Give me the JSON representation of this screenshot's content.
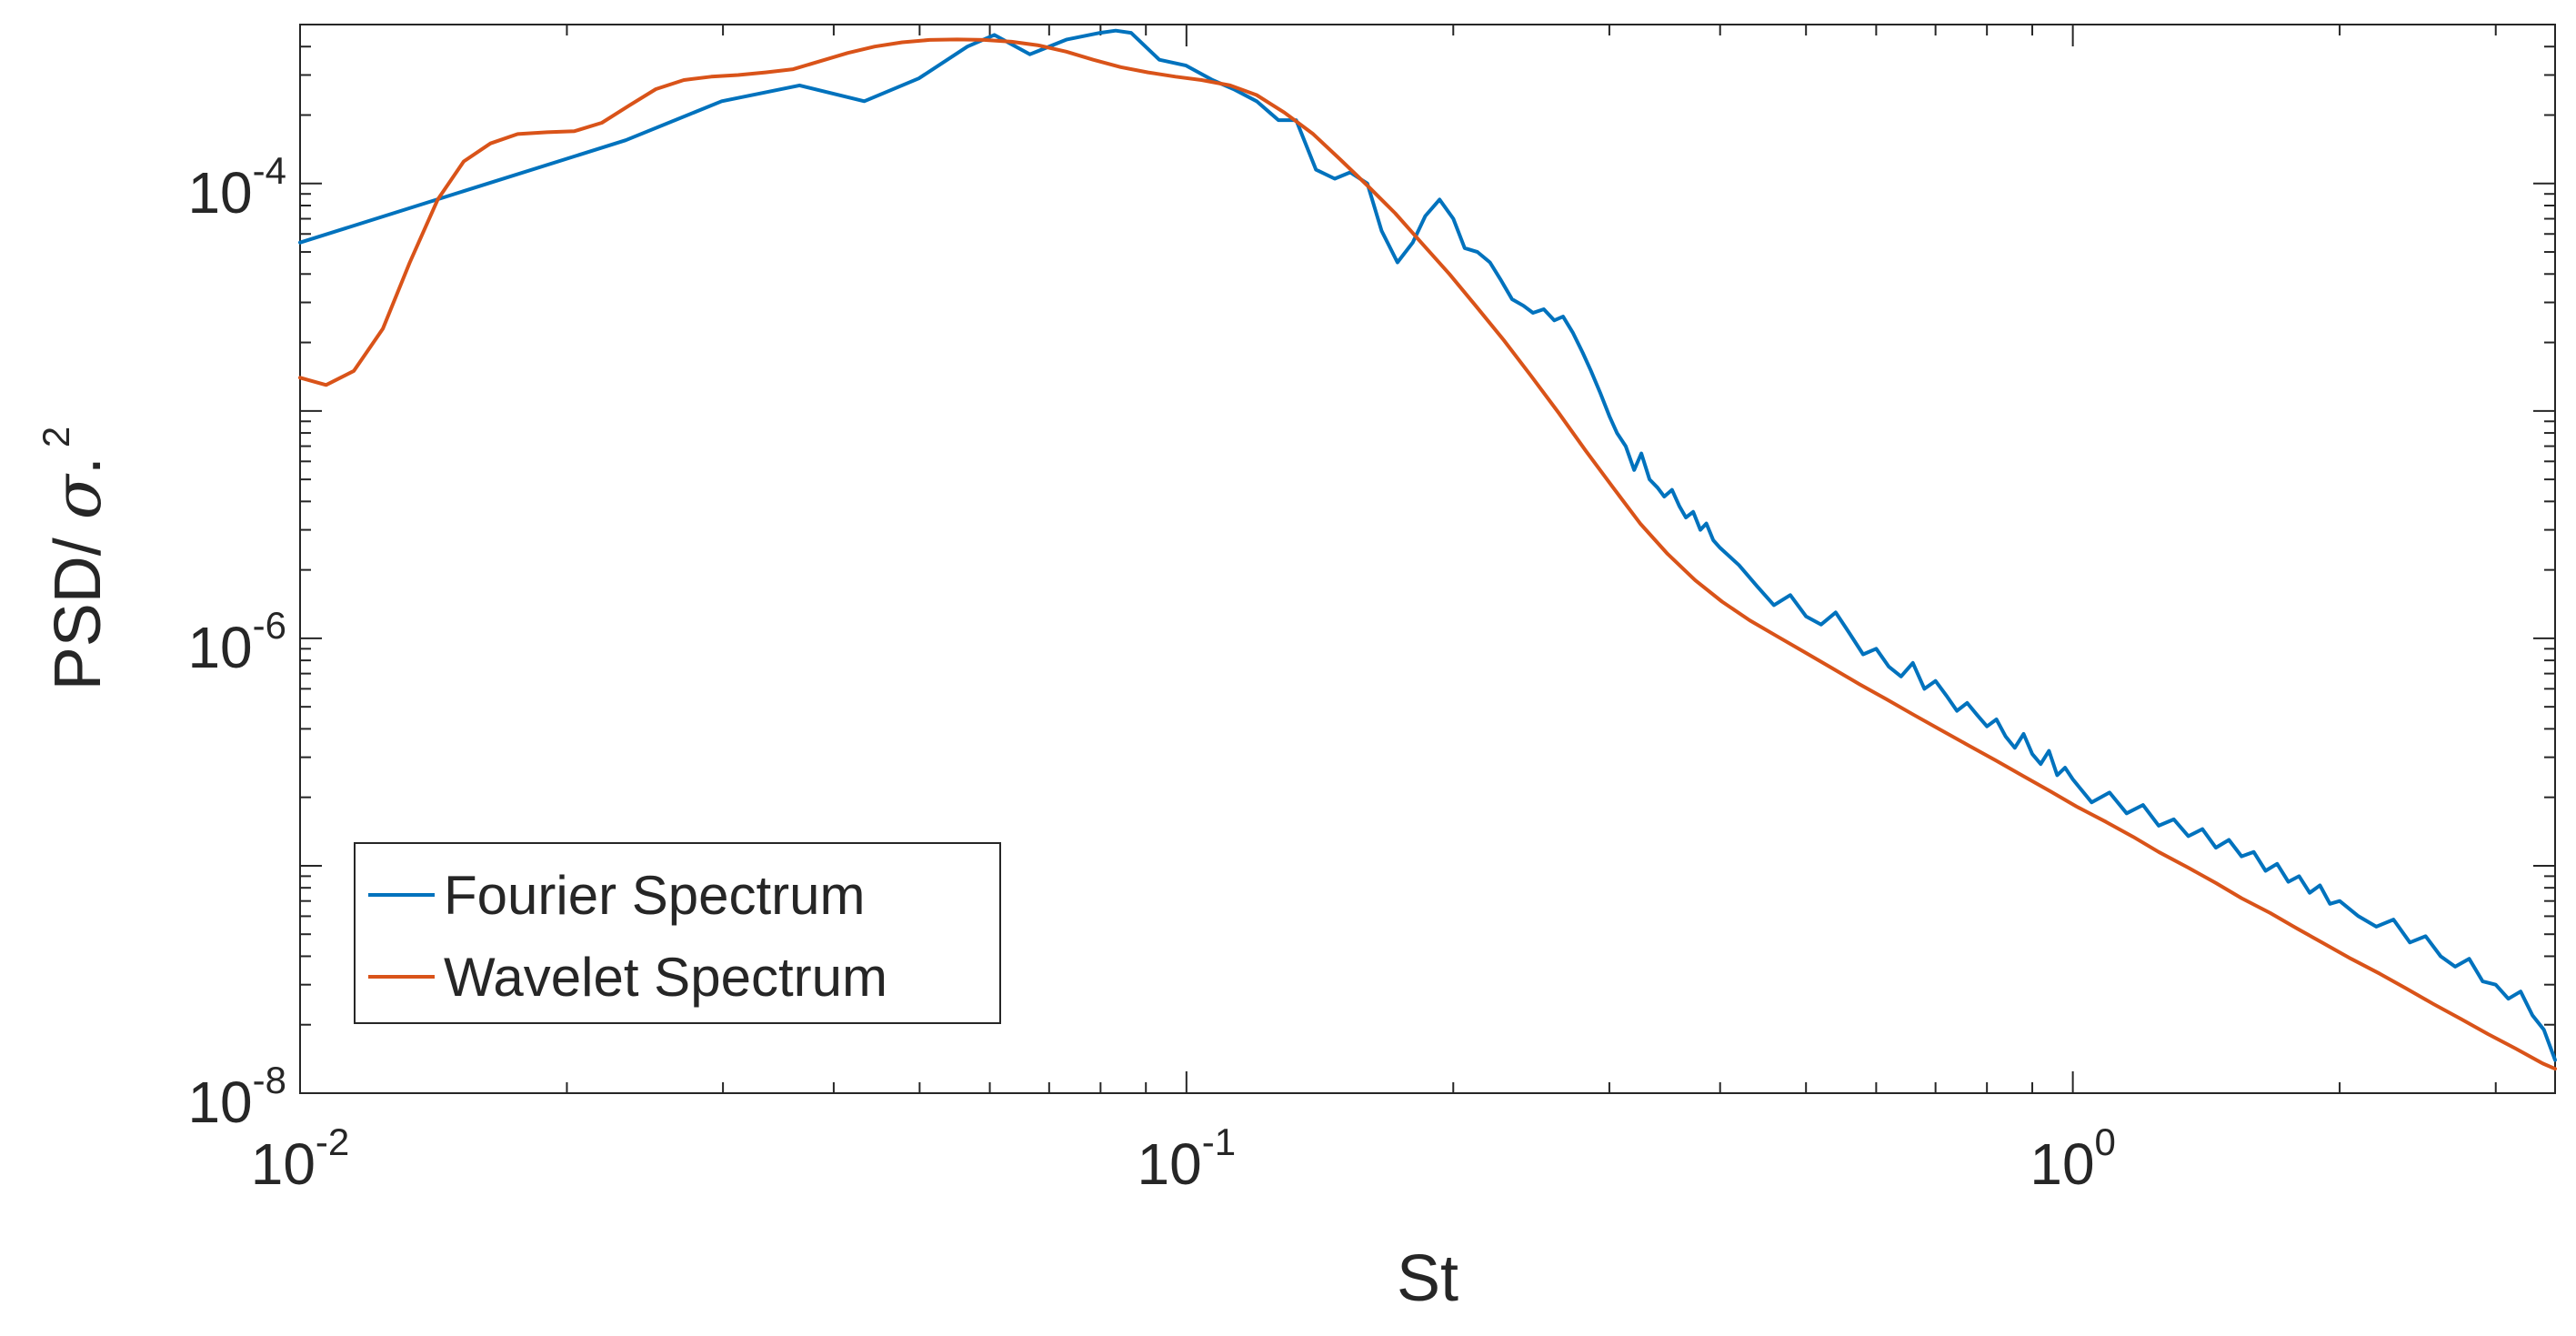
{
  "chart_data": {
    "type": "line",
    "title": "",
    "xlabel": "St",
    "ylabel_text": "PSD/ ",
    "ylabel_symbol": "σ",
    "ylabel_tail": ".",
    "ylabel_exponent": "2",
    "xscale": "log",
    "yscale": "log",
    "xlim": [
      0.01,
      3.5
    ],
    "ylim": [
      1e-08,
      0.0005
    ],
    "x_ticks": [
      {
        "value": 0.01,
        "base": "10",
        "exp": "-2"
      },
      {
        "value": 0.1,
        "base": "10",
        "exp": "-1"
      },
      {
        "value": 1,
        "base": "10",
        "exp": "0"
      }
    ],
    "y_ticks": [
      {
        "value": 1e-08,
        "base": "10",
        "exp": "-8"
      },
      {
        "value": 1e-06,
        "base": "10",
        "exp": "-6"
      },
      {
        "value": 0.0001,
        "base": "10",
        "exp": "-4"
      }
    ],
    "legend_position": "bottom-left",
    "series": [
      {
        "name": "Fourier Spectrum",
        "color": "#0072BD",
        "x": [
          0.01,
          0.0233,
          0.0299,
          0.0366,
          0.0433,
          0.0499,
          0.0566,
          0.0607,
          0.0666,
          0.0733,
          0.0799,
          0.0832,
          0.0866,
          0.0932,
          0.0999,
          0.107,
          0.113,
          0.12,
          0.127,
          0.133,
          0.14,
          0.147,
          0.153,
          0.16,
          0.166,
          0.173,
          0.18,
          0.186,
          0.193,
          0.2,
          0.206,
          0.213,
          0.22,
          0.226,
          0.233,
          0.24,
          0.246,
          0.253,
          0.26,
          0.266,
          0.273,
          0.28,
          0.286,
          0.293,
          0.3,
          0.306,
          0.313,
          0.32,
          0.326,
          0.333,
          0.34,
          0.346,
          0.353,
          0.36,
          0.366,
          0.373,
          0.38,
          0.386,
          0.393,
          0.4,
          0.42,
          0.44,
          0.46,
          0.48,
          0.5,
          0.52,
          0.54,
          0.56,
          0.58,
          0.6,
          0.62,
          0.64,
          0.66,
          0.68,
          0.7,
          0.72,
          0.74,
          0.76,
          0.78,
          0.8,
          0.82,
          0.84,
          0.86,
          0.88,
          0.9,
          0.92,
          0.94,
          0.96,
          0.98,
          1.0,
          1.05,
          1.1,
          1.15,
          1.2,
          1.25,
          1.3,
          1.35,
          1.4,
          1.45,
          1.5,
          1.55,
          1.6,
          1.65,
          1.7,
          1.75,
          1.8,
          1.85,
          1.9,
          1.95,
          2.0,
          2.1,
          2.2,
          2.3,
          2.4,
          2.5,
          2.6,
          2.7,
          2.8,
          2.9,
          3.0,
          3.1,
          3.2,
          3.3,
          3.4,
          3.5
        ],
        "y": [
          5.5e-05,
          0.000155,
          0.00023,
          0.00027,
          0.00023,
          0.00029,
          0.0004,
          0.00045,
          0.00037,
          0.00043,
          0.00046,
          0.00047,
          0.00046,
          0.00035,
          0.00033,
          0.000285,
          0.00026,
          0.00023,
          0.00019,
          0.00019,
          0.000115,
          0.000105,
          0.000112,
          0.0001,
          6.2e-05,
          4.5e-05,
          5.5e-05,
          7.2e-05,
          8.5e-05,
          7e-05,
          5.2e-05,
          5e-05,
          4.5e-05,
          3.8e-05,
          3.1e-05,
          2.9e-05,
          2.7e-05,
          2.8e-05,
          2.5e-05,
          2.6e-05,
          2.2e-05,
          1.8e-05,
          1.5e-05,
          1.2e-05,
          9.5e-06,
          8e-06,
          7e-06,
          5.5e-06,
          6.5e-06,
          5e-06,
          4.6e-06,
          4.2e-06,
          4.5e-06,
          3.8e-06,
          3.4e-06,
          3.6e-06,
          3e-06,
          3.2e-06,
          2.7e-06,
          2.5e-06,
          2.1e-06,
          1.7e-06,
          1.4e-06,
          1.55e-06,
          1.25e-06,
          1.15e-06,
          1.3e-06,
          1.05e-06,
          8.5e-07,
          9e-07,
          7.5e-07,
          6.8e-07,
          7.8e-07,
          6e-07,
          6.5e-07,
          5.6e-07,
          4.8e-07,
          5.2e-07,
          4.6e-07,
          4.1e-07,
          4.4e-07,
          3.7e-07,
          3.3e-07,
          3.8e-07,
          3.1e-07,
          2.8e-07,
          3.2e-07,
          2.5e-07,
          2.7e-07,
          2.4e-07,
          1.9e-07,
          2.1e-07,
          1.7e-07,
          1.85e-07,
          1.5e-07,
          1.6e-07,
          1.35e-07,
          1.45e-07,
          1.2e-07,
          1.3e-07,
          1.1e-07,
          1.15e-07,
          9.5e-08,
          1.02e-07,
          8.5e-08,
          9e-08,
          7.6e-08,
          8.2e-08,
          6.8e-08,
          7e-08,
          6e-08,
          5.4e-08,
          5.8e-08,
          4.6e-08,
          4.9e-08,
          4e-08,
          3.6e-08,
          3.9e-08,
          3.1e-08,
          3e-08,
          2.6e-08,
          2.8e-08,
          2.2e-08,
          1.9e-08,
          1.4e-08
        ]
      },
      {
        "name": "Wavelet Spectrum",
        "color": "#D95319",
        "x": [
          0.01,
          0.0107,
          0.0115,
          0.0124,
          0.0133,
          0.0143,
          0.0153,
          0.0164,
          0.0176,
          0.019,
          0.0204,
          0.0219,
          0.0235,
          0.0252,
          0.0271,
          0.0291,
          0.0312,
          0.0335,
          0.036,
          0.0386,
          0.0415,
          0.0445,
          0.0478,
          0.0513,
          0.0551,
          0.0591,
          0.0635,
          0.0681,
          0.0732,
          0.0785,
          0.0843,
          0.0905,
          0.0972,
          0.104,
          0.112,
          0.12,
          0.129,
          0.139,
          0.149,
          0.16,
          0.172,
          0.184,
          0.198,
          0.212,
          0.228,
          0.245,
          0.263,
          0.282,
          0.303,
          0.325,
          0.349,
          0.375,
          0.402,
          0.432,
          0.464,
          0.498,
          0.535,
          0.574,
          0.616,
          0.662,
          0.71,
          0.763,
          0.819,
          0.879,
          0.944,
          1.01,
          1.09,
          1.17,
          1.25,
          1.35,
          1.45,
          1.55,
          1.67,
          1.79,
          1.92,
          2.06,
          2.22,
          2.38,
          2.55,
          2.74,
          2.94,
          3.16,
          3.39,
          3.5
        ],
        "y": [
          1.4e-05,
          1.3e-05,
          1.5e-05,
          2.3e-05,
          4.5e-05,
          8.5e-05,
          0.000125,
          0.00015,
          0.000165,
          0.000168,
          0.00017,
          0.000185,
          0.00022,
          0.00026,
          0.000285,
          0.000295,
          0.0003,
          0.000308,
          0.000318,
          0.000345,
          0.000375,
          0.0004,
          0.000418,
          0.000428,
          0.00043,
          0.000428,
          0.00042,
          0.000405,
          0.00038,
          0.00035,
          0.000325,
          0.000308,
          0.000295,
          0.000285,
          0.00027,
          0.000245,
          0.000205,
          0.000165,
          0.000128,
          9.8e-05,
          7.4e-05,
          5.5e-05,
          4e-05,
          2.9e-05,
          2.05e-05,
          1.42e-05,
          9.8e-06,
          6.7e-06,
          4.6e-06,
          3.2e-06,
          2.35e-06,
          1.8e-06,
          1.45e-06,
          1.2e-06,
          1.02e-06,
          8.7e-07,
          7.4e-07,
          6.3e-07,
          5.4e-07,
          4.6e-07,
          3.95e-07,
          3.38e-07,
          2.9e-07,
          2.48e-07,
          2.12e-07,
          1.82e-07,
          1.56e-07,
          1.34e-07,
          1.15e-07,
          9.8e-08,
          8.4e-08,
          7.2e-08,
          6.2e-08,
          5.3e-08,
          4.55e-08,
          3.9e-08,
          3.35e-08,
          2.88e-08,
          2.47e-08,
          2.12e-08,
          1.82e-08,
          1.57e-08,
          1.35e-08,
          1.28e-08
        ]
      }
    ]
  }
}
